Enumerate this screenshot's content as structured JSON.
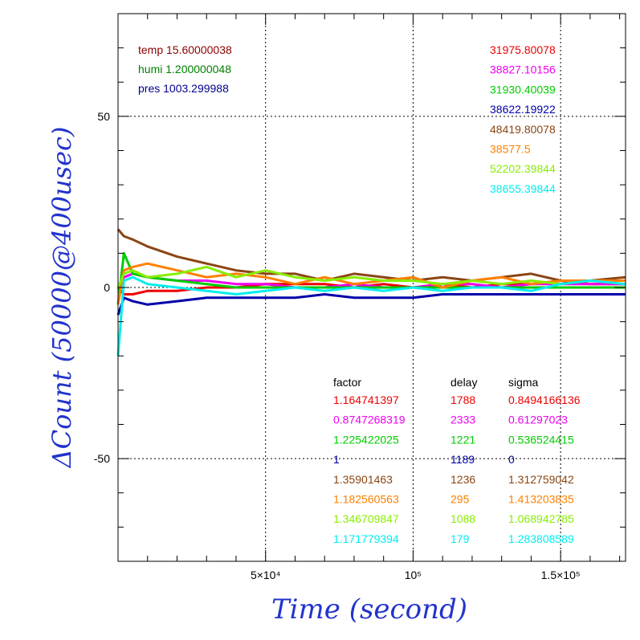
{
  "chart_data": {
    "type": "line",
    "xlabel": "Time (second)",
    "ylabel": "ΔCount (50000@400usec)",
    "xlim": [
      0,
      172000
    ],
    "ylim": [
      -80,
      80
    ],
    "x_ticks": [
      {
        "value": 50000,
        "label": "5×10⁴"
      },
      {
        "value": 100000,
        "label": "10⁵"
      },
      {
        "value": 150000,
        "label": "1.5×10⁵"
      }
    ],
    "y_ticks": [
      {
        "value": 50,
        "label": "50"
      },
      {
        "value": 0,
        "label": "0"
      },
      {
        "value": -50,
        "label": "-50"
      }
    ],
    "grid": true,
    "env_labels": [
      {
        "text": "temp 15.60000038",
        "color": "#8b0000"
      },
      {
        "text": "humi 1.200000048",
        "color": "#008000"
      },
      {
        "text": "pres 1003.299988",
        "color": "#00008b"
      }
    ],
    "table_headers": [
      "factor",
      "delay",
      "sigma"
    ],
    "series": [
      {
        "legend": "31975.80078",
        "color": "#ee0000",
        "factor": "1.164741397",
        "delay": "1788",
        "sigma": "0.8494166136",
        "x": [
          0,
          2000,
          5000,
          10000,
          20000,
          30000,
          40000,
          50000,
          60000,
          70000,
          80000,
          90000,
          100000,
          110000,
          120000,
          130000,
          140000,
          150000,
          160000,
          172000
        ],
        "y": [
          0,
          -2,
          -2,
          -1,
          -1,
          0,
          0,
          1,
          1,
          1,
          0,
          1,
          0,
          1,
          0,
          1,
          1,
          2,
          1,
          1
        ]
      },
      {
        "legend": "38827.10156",
        "color": "#ee00ee",
        "factor": "0.8747268319",
        "delay": "2333",
        "sigma": "0.61297023",
        "x": [
          0,
          2000,
          5000,
          10000,
          20000,
          30000,
          40000,
          50000,
          60000,
          70000,
          80000,
          90000,
          100000,
          110000,
          120000,
          130000,
          140000,
          150000,
          160000,
          172000
        ],
        "y": [
          0,
          3,
          4,
          3,
          2,
          2,
          1,
          1,
          0,
          0,
          1,
          0,
          0,
          1,
          1,
          0,
          1,
          1,
          1,
          1
        ]
      },
      {
        "legend": "31930.40039",
        "color": "#00cc00",
        "factor": "1.225422025",
        "delay": "1221",
        "sigma": "0.536524415",
        "x": [
          0,
          2000,
          5000,
          10000,
          20000,
          30000,
          40000,
          50000,
          60000,
          70000,
          80000,
          90000,
          100000,
          110000,
          120000,
          130000,
          140000,
          150000,
          160000,
          172000
        ],
        "y": [
          -5,
          10,
          4,
          3,
          2,
          1,
          0,
          0,
          0,
          0,
          0,
          0,
          0,
          0,
          0,
          0,
          0,
          0,
          0,
          0
        ]
      },
      {
        "legend": "38622.19922",
        "color": "#0000aa",
        "factor": "1",
        "delay": "1189",
        "sigma": "0",
        "x": [
          0,
          2000,
          5000,
          10000,
          20000,
          30000,
          40000,
          50000,
          60000,
          70000,
          80000,
          90000,
          100000,
          110000,
          120000,
          130000,
          140000,
          150000,
          160000,
          172000
        ],
        "y": [
          -8,
          -3,
          -4,
          -5,
          -4,
          -3,
          -3,
          -3,
          -3,
          -2,
          -3,
          -3,
          -3,
          -2,
          -2,
          -2,
          -2,
          -2,
          -2,
          -2
        ]
      },
      {
        "legend": "48419.80078",
        "color": "#8b4513",
        "factor": "1.35901463",
        "delay": "1236",
        "sigma": "1.312759042",
        "x": [
          0,
          2000,
          5000,
          10000,
          20000,
          30000,
          40000,
          50000,
          60000,
          70000,
          80000,
          90000,
          100000,
          110000,
          120000,
          130000,
          140000,
          150000,
          160000,
          172000
        ],
        "y": [
          17,
          15,
          14,
          12,
          9,
          7,
          5,
          4,
          4,
          2,
          4,
          3,
          2,
          3,
          2,
          3,
          4,
          2,
          2,
          3
        ]
      },
      {
        "legend": "38577.5",
        "color": "#ff8000",
        "factor": "1.182560563",
        "delay": "295",
        "sigma": "1.413203835",
        "x": [
          0,
          2000,
          5000,
          10000,
          20000,
          30000,
          40000,
          50000,
          60000,
          70000,
          80000,
          90000,
          100000,
          110000,
          120000,
          130000,
          140000,
          150000,
          160000,
          172000
        ],
        "y": [
          -5,
          5,
          6,
          7,
          5,
          3,
          4,
          3,
          1,
          3,
          1,
          2,
          3,
          0,
          2,
          3,
          1,
          2,
          2,
          2
        ]
      },
      {
        "legend": "52202.39844",
        "color": "#88ee00",
        "factor": "1.346709847",
        "delay": "1088",
        "sigma": "1.068942785",
        "x": [
          0,
          2000,
          5000,
          10000,
          20000,
          30000,
          40000,
          50000,
          60000,
          70000,
          80000,
          90000,
          100000,
          110000,
          120000,
          130000,
          140000,
          150000,
          160000,
          172000
        ],
        "y": [
          0,
          4,
          5,
          3,
          4,
          6,
          3,
          5,
          3,
          2,
          3,
          2,
          2,
          1,
          2,
          1,
          2,
          1,
          2,
          1
        ]
      },
      {
        "legend": "38655.39844",
        "color": "#00eeee",
        "factor": "1.171779394",
        "delay": "179",
        "sigma": "1.283808589",
        "x": [
          0,
          2000,
          5000,
          10000,
          20000,
          30000,
          40000,
          50000,
          60000,
          70000,
          80000,
          90000,
          100000,
          110000,
          120000,
          130000,
          140000,
          150000,
          160000,
          172000
        ],
        "y": [
          -20,
          2,
          3,
          1,
          0,
          -1,
          -2,
          -1,
          0,
          -1,
          0,
          -1,
          0,
          -1,
          0,
          0,
          -1,
          1,
          2,
          1
        ]
      }
    ]
  }
}
